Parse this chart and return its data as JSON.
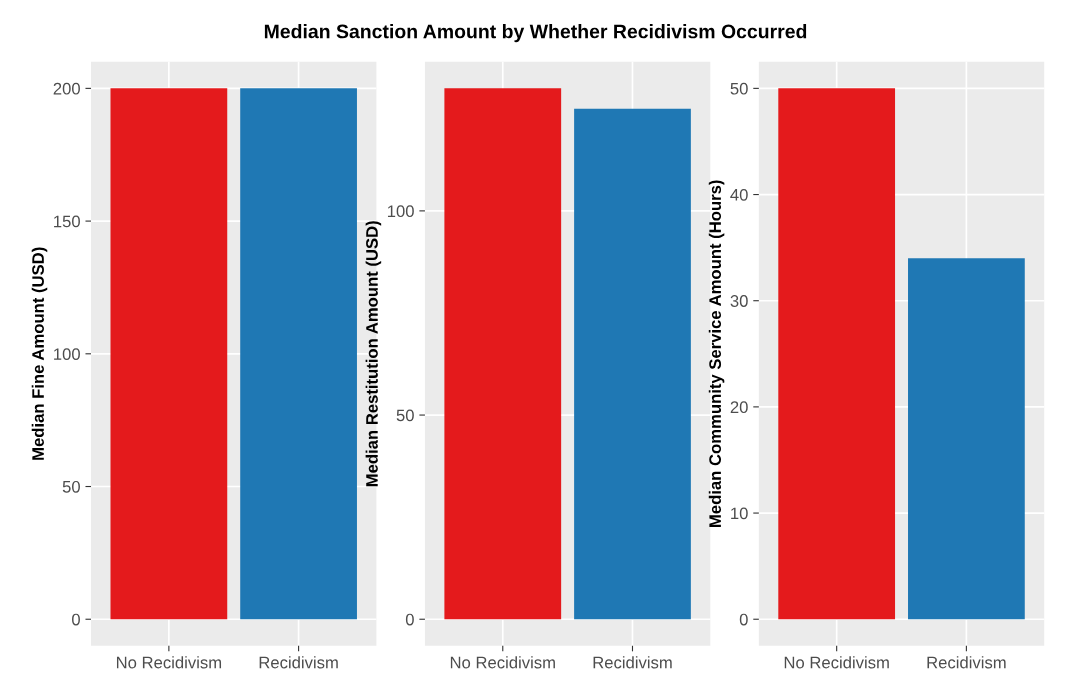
{
  "chart_data": [
    {
      "type": "bar",
      "title": "Median Sanction Amount by Whether Recidivism Occurred",
      "ylabel": "Median Fine Amount (USD)",
      "categories": [
        "No Recidivism",
        "Recidivism"
      ],
      "values": [
        200,
        200
      ],
      "colors": [
        "#e41a1c",
        "#1f78b4"
      ],
      "ylim": [
        -10,
        210
      ],
      "yticks": [
        0,
        50,
        100,
        150,
        200
      ],
      "grid": true,
      "legend": false
    },
    {
      "type": "bar",
      "ylabel": "Median Restitution Amount (USD)",
      "categories": [
        "No Recidivism",
        "Recidivism"
      ],
      "values": [
        130,
        125
      ],
      "colors": [
        "#e41a1c",
        "#1f78b4"
      ],
      "ylim": [
        -6.5,
        136.5
      ],
      "yticks": [
        0,
        50,
        100
      ],
      "grid": true,
      "legend": false
    },
    {
      "type": "bar",
      "ylabel": "Median Community Service Amount (Hours)",
      "categories": [
        "No Recidivism",
        "Recidivism"
      ],
      "values": [
        50,
        34
      ],
      "colors": [
        "#e41a1c",
        "#1f78b4"
      ],
      "ylim": [
        -2.5,
        52.5
      ],
      "yticks": [
        0,
        10,
        20,
        30,
        40,
        50
      ],
      "grid": true,
      "legend": false
    }
  ]
}
